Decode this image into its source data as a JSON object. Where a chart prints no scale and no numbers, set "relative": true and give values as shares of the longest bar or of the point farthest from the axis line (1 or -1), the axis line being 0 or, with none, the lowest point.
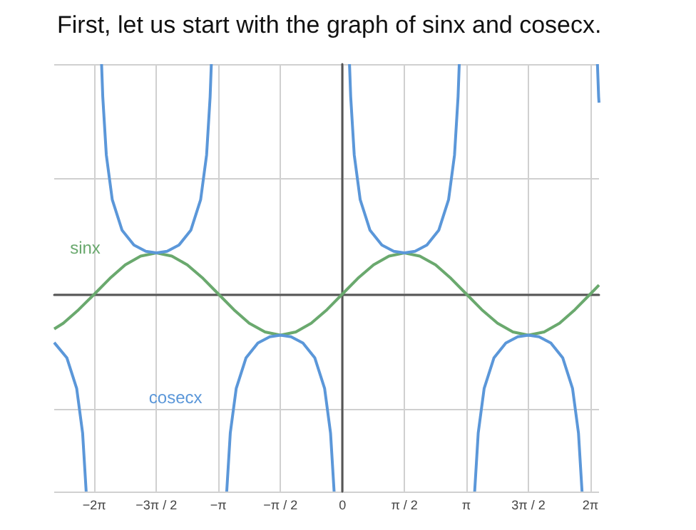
{
  "chart_data": {
    "type": "line",
    "title": "First, let us start with the graph of sinx and cosecx.",
    "relative": true,
    "xlim": [
      -7.3,
      6.5
    ],
    "xticks": [
      {
        "value": -6.283,
        "label": "−2π"
      },
      {
        "value": -4.712,
        "label": "−3π / 2"
      },
      {
        "value": -3.142,
        "label": "−π"
      },
      {
        "value": -1.571,
        "label": "−π / 2"
      },
      {
        "value": 0,
        "label": "0"
      },
      {
        "value": 1.571,
        "label": "π / 2"
      },
      {
        "value": 3.142,
        "label": "π"
      },
      {
        "value": 4.712,
        "label": "3π / 2"
      },
      {
        "value": 6.283,
        "label": "2π"
      }
    ],
    "tick_labels": "x",
    "grid": true,
    "legend": false,
    "marker": "none",
    "line_style": "solid",
    "series": [
      {
        "name": "sinx",
        "color": "#6aa96e",
        "x": [
          -7.3,
          -7.07,
          -6.68,
          -6.28,
          -5.89,
          -5.5,
          -5.11,
          -4.71,
          -4.32,
          -3.93,
          -3.53,
          -3.14,
          -2.75,
          -2.36,
          -1.96,
          -1.57,
          -1.18,
          -0.79,
          -0.39,
          0,
          0.39,
          0.79,
          1.18,
          1.57,
          1.96,
          2.36,
          2.75,
          3.14,
          3.53,
          3.93,
          4.32,
          4.71,
          5.11,
          5.5,
          5.89,
          6.28,
          6.5
        ],
        "values": [
          -0.152,
          -0.127,
          -0.068,
          0,
          0.068,
          0.127,
          0.165,
          0.179,
          0.165,
          0.127,
          0.068,
          0,
          -0.068,
          -0.127,
          -0.165,
          -0.179,
          -0.165,
          -0.127,
          -0.068,
          0,
          0.068,
          0.127,
          0.165,
          0.179,
          0.165,
          0.127,
          0.068,
          0,
          -0.068,
          -0.127,
          -0.165,
          -0.179,
          -0.165,
          -0.127,
          -0.068,
          0,
          0.039
        ]
      },
      {
        "name": "cosecx",
        "color": "#5b97d9",
        "x": [
          -7.3,
          -6.98,
          -6.73,
          -6.58,
          -6.49,
          -6.28,
          -6.1,
          -6.07,
          -5.98,
          -5.83,
          -5.58,
          -5.28,
          -4.98,
          -4.71,
          -4.44,
          -4.14,
          -3.84,
          -3.59,
          -3.44,
          -3.35,
          -3.32,
          -3.14,
          -2.93,
          -2.84,
          -2.69,
          -2.44,
          -2.14,
          -1.84,
          -1.57,
          -1.3,
          -1.0,
          -0.7,
          -0.45,
          -0.3,
          -0.21,
          0,
          0.18,
          0.21,
          0.3,
          0.45,
          0.7,
          1.0,
          1.3,
          1.57,
          1.84,
          2.14,
          2.44,
          2.69,
          2.84,
          2.93,
          2.96,
          3.14,
          3.35,
          3.44,
          3.59,
          3.84,
          4.14,
          4.44,
          4.71,
          4.98,
          5.28,
          5.58,
          5.83,
          5.98,
          6.07,
          6.28,
          6.46,
          6.49,
          6.5
        ],
        "values": [
          -0.211,
          -0.277,
          -0.411,
          -0.605,
          -0.859,
          null,
          1,
          0.859,
          0.605,
          0.411,
          0.277,
          0.213,
          0.186,
          0.179,
          0.186,
          0.213,
          0.277,
          0.411,
          0.605,
          0.859,
          1,
          null,
          -0.859,
          -0.605,
          -0.411,
          -0.277,
          -0.213,
          -0.186,
          -0.179,
          -0.186,
          -0.213,
          -0.277,
          -0.411,
          -0.605,
          -0.859,
          null,
          1,
          0.859,
          0.605,
          0.411,
          0.277,
          0.213,
          0.186,
          0.179,
          0.186,
          0.213,
          0.277,
          0.411,
          0.605,
          0.859,
          1,
          null,
          -0.859,
          -0.605,
          -0.411,
          -0.277,
          -0.213,
          -0.186,
          -0.179,
          -0.186,
          -0.213,
          -0.277,
          -0.411,
          -0.605,
          -0.859,
          null,
          1,
          0.859,
          0.832
        ]
      }
    ]
  }
}
